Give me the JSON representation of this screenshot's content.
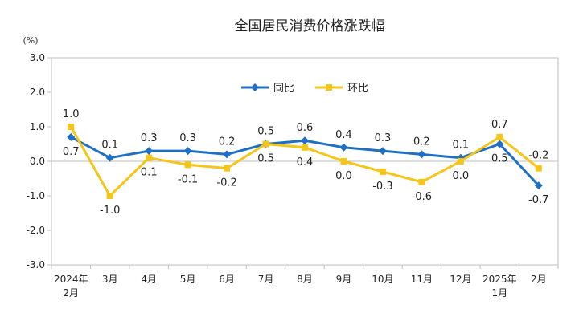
{
  "chart_data": {
    "type": "line",
    "title": "全国居民消费价格涨跌幅",
    "unit": "(%)",
    "categories": [
      [
        "2024年",
        "2月"
      ],
      [
        "3月"
      ],
      [
        "4月"
      ],
      [
        "5月"
      ],
      [
        "6月"
      ],
      [
        "7月"
      ],
      [
        "8月"
      ],
      [
        "9月"
      ],
      [
        "10月"
      ],
      [
        "11月"
      ],
      [
        "12月"
      ],
      [
        "2025年",
        "1月"
      ],
      [
        "2月"
      ]
    ],
    "ylim": [
      -3.0,
      3.0
    ],
    "yticks": [
      "3.0",
      "2.0",
      "1.0",
      "0.0",
      "-1.0",
      "-2.0",
      "-3.0"
    ],
    "legend_position": "top-center",
    "grid": false,
    "series": [
      {
        "name": "同比",
        "color": "#1f6fc5",
        "marker": "diamond",
        "values": [
          0.7,
          0.1,
          0.3,
          0.3,
          0.2,
          0.5,
          0.6,
          0.4,
          0.3,
          0.2,
          0.1,
          0.5,
          -0.7
        ],
        "labels": [
          "0.7",
          "0.1",
          "0.3",
          "0.3",
          "0.2",
          "0.5",
          "0.6",
          "0.4",
          "0.3",
          "0.2",
          "0.1",
          "0.5",
          "-0.7"
        ]
      },
      {
        "name": "环比",
        "color": "#f5c518",
        "marker": "square",
        "values": [
          1.0,
          -1.0,
          0.1,
          -0.1,
          -0.2,
          0.5,
          0.4,
          0.0,
          -0.3,
          -0.6,
          0.0,
          0.7,
          -0.2
        ],
        "labels": [
          "1.0",
          "-1.0",
          "0.1",
          "-0.1",
          "-0.2",
          "0.5",
          "0.4",
          "0.0",
          "-0.3",
          "-0.6",
          "0.0",
          "0.7",
          "-0.2"
        ]
      }
    ]
  }
}
